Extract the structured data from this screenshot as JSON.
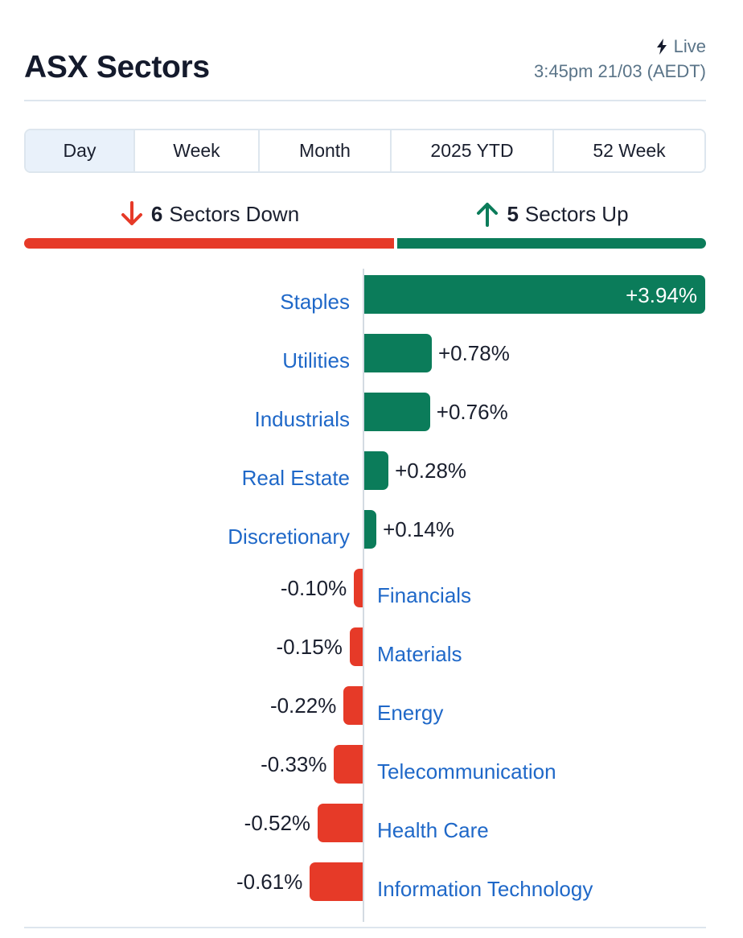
{
  "header": {
    "title": "ASX Sectors",
    "live_label": "Live",
    "timestamp": "3:45pm 21/03 (AEDT)"
  },
  "tabs": [
    {
      "label": "Day",
      "active": true
    },
    {
      "label": "Week",
      "active": false
    },
    {
      "label": "Month",
      "active": false
    },
    {
      "label": "2025 YTD",
      "active": false
    },
    {
      "label": "52 Week",
      "active": false
    }
  ],
  "summary": {
    "down_count": "6",
    "down_label": "Sectors Down",
    "up_count": "5",
    "up_label": "Sectors Up"
  },
  "colors": {
    "up": "#0b7c5a",
    "down": "#e63a28",
    "link": "#1f68c8",
    "active_tab": "#e9f1fa"
  },
  "chart_data": {
    "type": "bar",
    "orientation": "horizontal",
    "categories": [
      "Staples",
      "Utilities",
      "Industrials",
      "Real Estate",
      "Discretionary",
      "Financials",
      "Materials",
      "Energy",
      "Telecommunication",
      "Health Care",
      "Information Technology"
    ],
    "values": [
      3.94,
      0.78,
      0.76,
      0.28,
      0.14,
      -0.1,
      -0.15,
      -0.22,
      -0.33,
      -0.52,
      -0.61
    ],
    "value_labels": [
      "+3.94%",
      "+0.78%",
      "+0.76%",
      "+0.28%",
      "+0.14%",
      "-0.10%",
      "-0.15%",
      "-0.22%",
      "-0.33%",
      "-0.52%",
      "-0.61%"
    ]
  }
}
